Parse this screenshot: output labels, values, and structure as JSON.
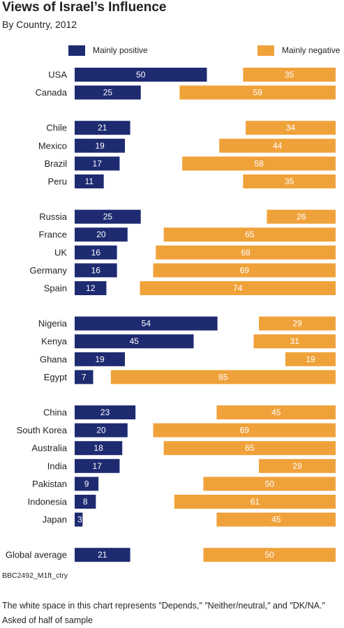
{
  "header": {
    "title": "Views of Israel’s Influence",
    "subtitle": "By Country, 2012"
  },
  "legend": {
    "positive": "Mainly positive",
    "negative": "Mainly negative"
  },
  "colors": {
    "positive": "#1e2b71",
    "negative": "#f0a23a"
  },
  "chart_data": {
    "type": "bar",
    "orientation": "horizontal",
    "categories": [
      "USA",
      "Canada",
      "Chile",
      "Mexico",
      "Brazil",
      "Peru",
      "Russia",
      "France",
      "UK",
      "Germany",
      "Spain",
      "Nigeria",
      "Kenya",
      "Ghana",
      "Egypt",
      "China",
      "South Korea",
      "Australia",
      "India",
      "Pakistan",
      "Indonesia",
      "Japan",
      "Global average"
    ],
    "groups": [
      [
        0,
        1
      ],
      [
        2,
        3,
        4,
        5
      ],
      [
        6,
        7,
        8,
        9,
        10
      ],
      [
        11,
        12,
        13,
        14
      ],
      [
        15,
        16,
        17,
        18,
        19,
        20,
        21
      ],
      [
        22
      ]
    ],
    "series": [
      {
        "name": "Mainly positive",
        "values": [
          50,
          25,
          21,
          19,
          17,
          11,
          25,
          20,
          16,
          16,
          12,
          54,
          45,
          19,
          7,
          23,
          20,
          18,
          17,
          9,
          8,
          3,
          21
        ]
      },
      {
        "name": "Mainly negative",
        "values": [
          35,
          59,
          34,
          44,
          58,
          35,
          26,
          65,
          68,
          69,
          74,
          29,
          31,
          19,
          85,
          45,
          69,
          65,
          29,
          50,
          61,
          45,
          50
        ]
      }
    ],
    "legend_position": "top",
    "grid": false
  },
  "footer": {
    "source": "BBC2492_M1ft_ctry",
    "note_1": "The white space in this chart represents ″Depends,″ ″Neither/neutral,″ and ″DK/NA.″",
    "note_2": "Asked of half of sample"
  }
}
